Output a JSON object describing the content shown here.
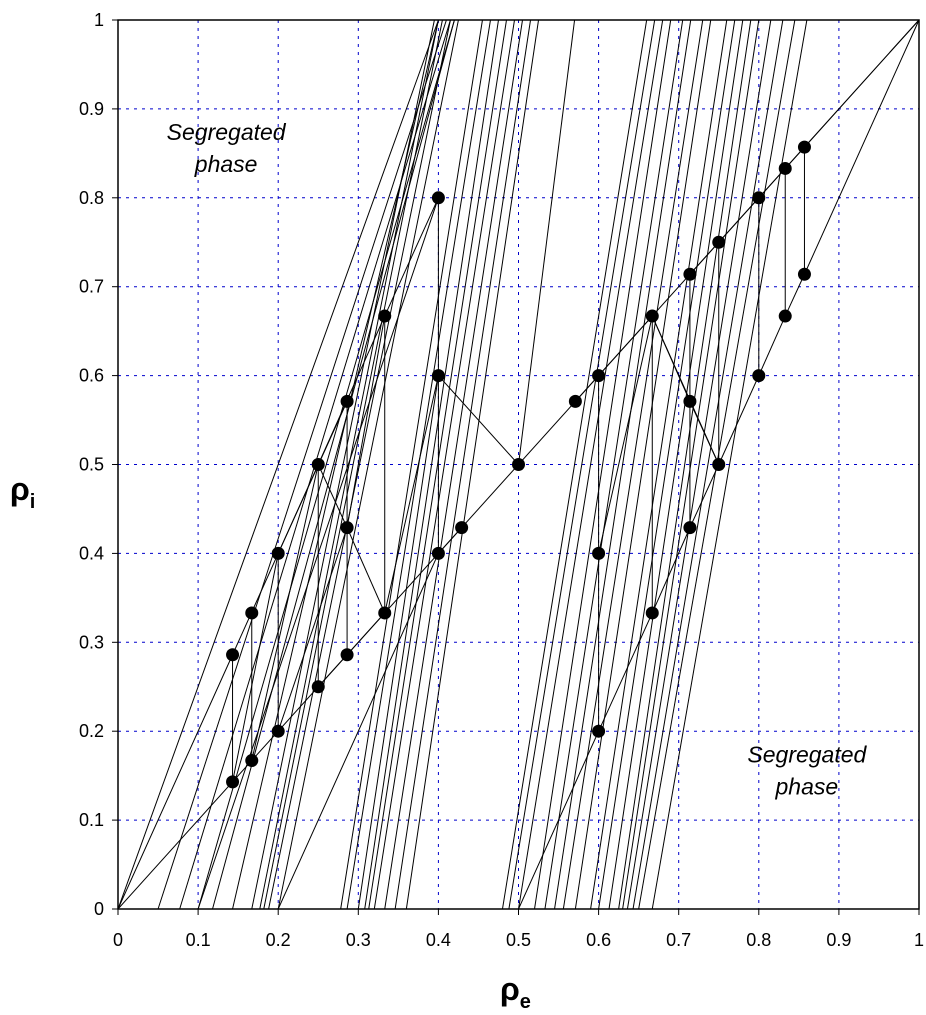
{
  "chart_data": {
    "type": "scatter",
    "title": "",
    "xlabel": {
      "main": "ρ",
      "sub": "e"
    },
    "ylabel": {
      "main": "ρ",
      "sub": "i"
    },
    "xlim": [
      0,
      1
    ],
    "ylim": [
      0,
      1
    ],
    "xticks": [
      "0",
      "0.1",
      "0.2",
      "0.3",
      "0.4",
      "0.5",
      "0.6",
      "0.7",
      "0.8",
      "0.9",
      "1"
    ],
    "yticks": [
      "0",
      "0.1",
      "0.2",
      "0.3",
      "0.4",
      "0.5",
      "0.6",
      "0.7",
      "0.8",
      "0.9",
      "1"
    ],
    "grid": true,
    "grid_color": "#0000cc",
    "annotations": [
      {
        "lines": [
          "Segregated",
          "phase"
        ],
        "x": 0.135,
        "y": 0.865
      },
      {
        "lines": [
          "Segregated",
          "phase"
        ],
        "x": 0.86,
        "y": 0.165
      }
    ],
    "points": [
      [
        0.143,
        0.143
      ],
      [
        0.143,
        0.286
      ],
      [
        0.167,
        0.167
      ],
      [
        0.167,
        0.333
      ],
      [
        0.2,
        0.2
      ],
      [
        0.2,
        0.4
      ],
      [
        0.25,
        0.25
      ],
      [
        0.25,
        0.5
      ],
      [
        0.286,
        0.286
      ],
      [
        0.286,
        0.429
      ],
      [
        0.286,
        0.571
      ],
      [
        0.333,
        0.333
      ],
      [
        0.333,
        0.667
      ],
      [
        0.4,
        0.4
      ],
      [
        0.4,
        0.6
      ],
      [
        0.4,
        0.8
      ],
      [
        0.429,
        0.429
      ],
      [
        0.5,
        0.5
      ],
      [
        0.571,
        0.571
      ],
      [
        0.6,
        0.2
      ],
      [
        0.6,
        0.4
      ],
      [
        0.6,
        0.6
      ],
      [
        0.667,
        0.333
      ],
      [
        0.667,
        0.667
      ],
      [
        0.714,
        0.429
      ],
      [
        0.714,
        0.571
      ],
      [
        0.714,
        0.714
      ],
      [
        0.75,
        0.5
      ],
      [
        0.75,
        0.75
      ],
      [
        0.8,
        0.6
      ],
      [
        0.8,
        0.8
      ],
      [
        0.833,
        0.667
      ],
      [
        0.833,
        0.833
      ],
      [
        0.857,
        0.714
      ],
      [
        0.857,
        0.857
      ]
    ],
    "segments": [
      [
        0,
        0,
        1,
        1
      ],
      [
        0.143,
        0.143,
        0.143,
        0.286
      ],
      [
        0.167,
        0.167,
        0.167,
        0.333
      ],
      [
        0.2,
        0.2,
        0.2,
        0.4
      ],
      [
        0.25,
        0.25,
        0.25,
        0.5
      ],
      [
        0.286,
        0.286,
        0.286,
        0.571
      ],
      [
        0.333,
        0.333,
        0.333,
        0.667
      ],
      [
        0.4,
        0.4,
        0.4,
        0.8
      ],
      [
        0.6,
        0.2,
        0.6,
        0.6
      ],
      [
        0.667,
        0.333,
        0.667,
        0.667
      ],
      [
        0.714,
        0.429,
        0.714,
        0.714
      ],
      [
        0.75,
        0.5,
        0.75,
        0.75
      ],
      [
        0.8,
        0.6,
        0.8,
        0.8
      ],
      [
        0.833,
        0.667,
        0.833,
        0.833
      ],
      [
        0.857,
        0.714,
        0.857,
        0.857
      ],
      [
        0,
        0,
        0.143,
        0.286
      ],
      [
        0.143,
        0.286,
        0.25,
        0.5
      ],
      [
        0.25,
        0.5,
        0.333,
        0.667
      ],
      [
        0.333,
        0.667,
        0.4,
        0.8
      ],
      [
        0.143,
        0.143,
        0.2,
        0.4
      ],
      [
        0.2,
        0.4,
        0.286,
        0.571
      ],
      [
        0.167,
        0.167,
        0.25,
        0.5
      ],
      [
        0.2,
        0.2,
        0.286,
        0.429
      ],
      [
        0.286,
        0.429,
        0.333,
        0.667
      ],
      [
        0.25,
        0.25,
        0.333,
        0.333
      ],
      [
        0.25,
        0.5,
        0.286,
        0.429
      ],
      [
        0.286,
        0.429,
        0.333,
        0.333
      ],
      [
        0.333,
        0.333,
        0.4,
        0.6
      ],
      [
        0.4,
        0.4,
        0.429,
        0.429
      ],
      [
        0.6,
        0.2,
        0.667,
        0.333
      ],
      [
        0.667,
        0.333,
        0.714,
        0.429
      ],
      [
        0.714,
        0.429,
        0.75,
        0.5
      ],
      [
        0.75,
        0.5,
        0.8,
        0.6
      ],
      [
        0.8,
        0.6,
        0.833,
        0.667
      ],
      [
        0.833,
        0.667,
        0.857,
        0.714
      ],
      [
        0.857,
        0.714,
        1,
        1
      ],
      [
        0.857,
        0.857,
        1,
        1
      ],
      [
        0.6,
        0.6,
        0.667,
        0.667
      ],
      [
        0.667,
        0.667,
        0.714,
        0.571
      ],
      [
        0.667,
        0.667,
        0.75,
        0.5
      ],
      [
        0.714,
        0.571,
        0.75,
        0.5
      ],
      [
        0.714,
        0.714,
        0.75,
        0.75
      ],
      [
        0.75,
        0.75,
        0.8,
        0.8
      ],
      [
        0.8,
        0.8,
        0.833,
        0.833
      ],
      [
        0.833,
        0.833,
        0.857,
        0.857
      ],
      [
        0.571,
        0.571,
        0.6,
        0.6
      ],
      [
        0.6,
        0.4,
        0.667,
        0.667
      ],
      [
        0,
        0,
        0.4,
        1
      ],
      [
        0.05,
        0,
        0.41,
        1
      ],
      [
        0.077,
        0,
        0.415,
        1
      ],
      [
        0.1,
        0,
        0.42,
        1
      ],
      [
        0.118,
        0,
        0.42,
        1
      ],
      [
        0.143,
        0,
        0.4,
        1
      ],
      [
        0.167,
        0,
        0.395,
        1
      ],
      [
        0.177,
        0,
        0.4,
        1
      ],
      [
        0.182,
        0,
        0.405,
        1
      ],
      [
        0.188,
        0,
        0.415,
        1
      ],
      [
        0.2,
        0,
        0.425,
        1
      ],
      [
        0.278,
        0,
        0.455,
        1
      ],
      [
        0.286,
        0,
        0.465,
        1
      ],
      [
        0.308,
        0,
        0.475,
        1
      ],
      [
        0.313,
        0,
        0.485,
        1
      ],
      [
        0.32,
        0,
        0.495,
        1
      ],
      [
        0.333,
        0,
        0.505,
        1
      ],
      [
        0.346,
        0,
        0.515,
        1
      ],
      [
        0.36,
        0,
        0.525,
        1
      ],
      [
        0.48,
        0,
        0.66,
        1
      ],
      [
        0.488,
        0,
        0.67,
        1
      ],
      [
        0.5,
        0,
        0.68,
        1
      ],
      [
        0.52,
        0,
        0.69,
        1
      ],
      [
        0.533,
        0,
        0.705,
        1
      ],
      [
        0.545,
        0,
        0.715,
        1
      ],
      [
        0.556,
        0,
        0.73,
        1
      ],
      [
        0.571,
        0,
        0.74,
        1
      ],
      [
        0.59,
        0,
        0.76,
        1
      ],
      [
        0.6,
        0,
        0.77,
        1
      ],
      [
        0.613,
        0,
        0.78,
        1
      ],
      [
        0.625,
        0,
        0.79,
        1
      ],
      [
        0.63,
        0,
        0.8,
        1
      ],
      [
        0.636,
        0,
        0.815,
        1
      ],
      [
        0.643,
        0,
        0.83,
        1
      ],
      [
        0.65,
        0,
        0.845,
        1
      ],
      [
        0.667,
        0,
        0.86,
        1
      ],
      [
        0.1,
        0,
        0.4,
        0.8
      ],
      [
        0.2,
        0,
        0.4,
        0.4
      ],
      [
        0.3,
        0,
        0.4,
        0.6
      ],
      [
        0.5,
        0,
        0.6,
        0.2
      ],
      [
        0.4,
        0.6,
        0.5,
        0.5
      ],
      [
        0.5,
        0.5,
        0.57,
        1
      ]
    ]
  }
}
